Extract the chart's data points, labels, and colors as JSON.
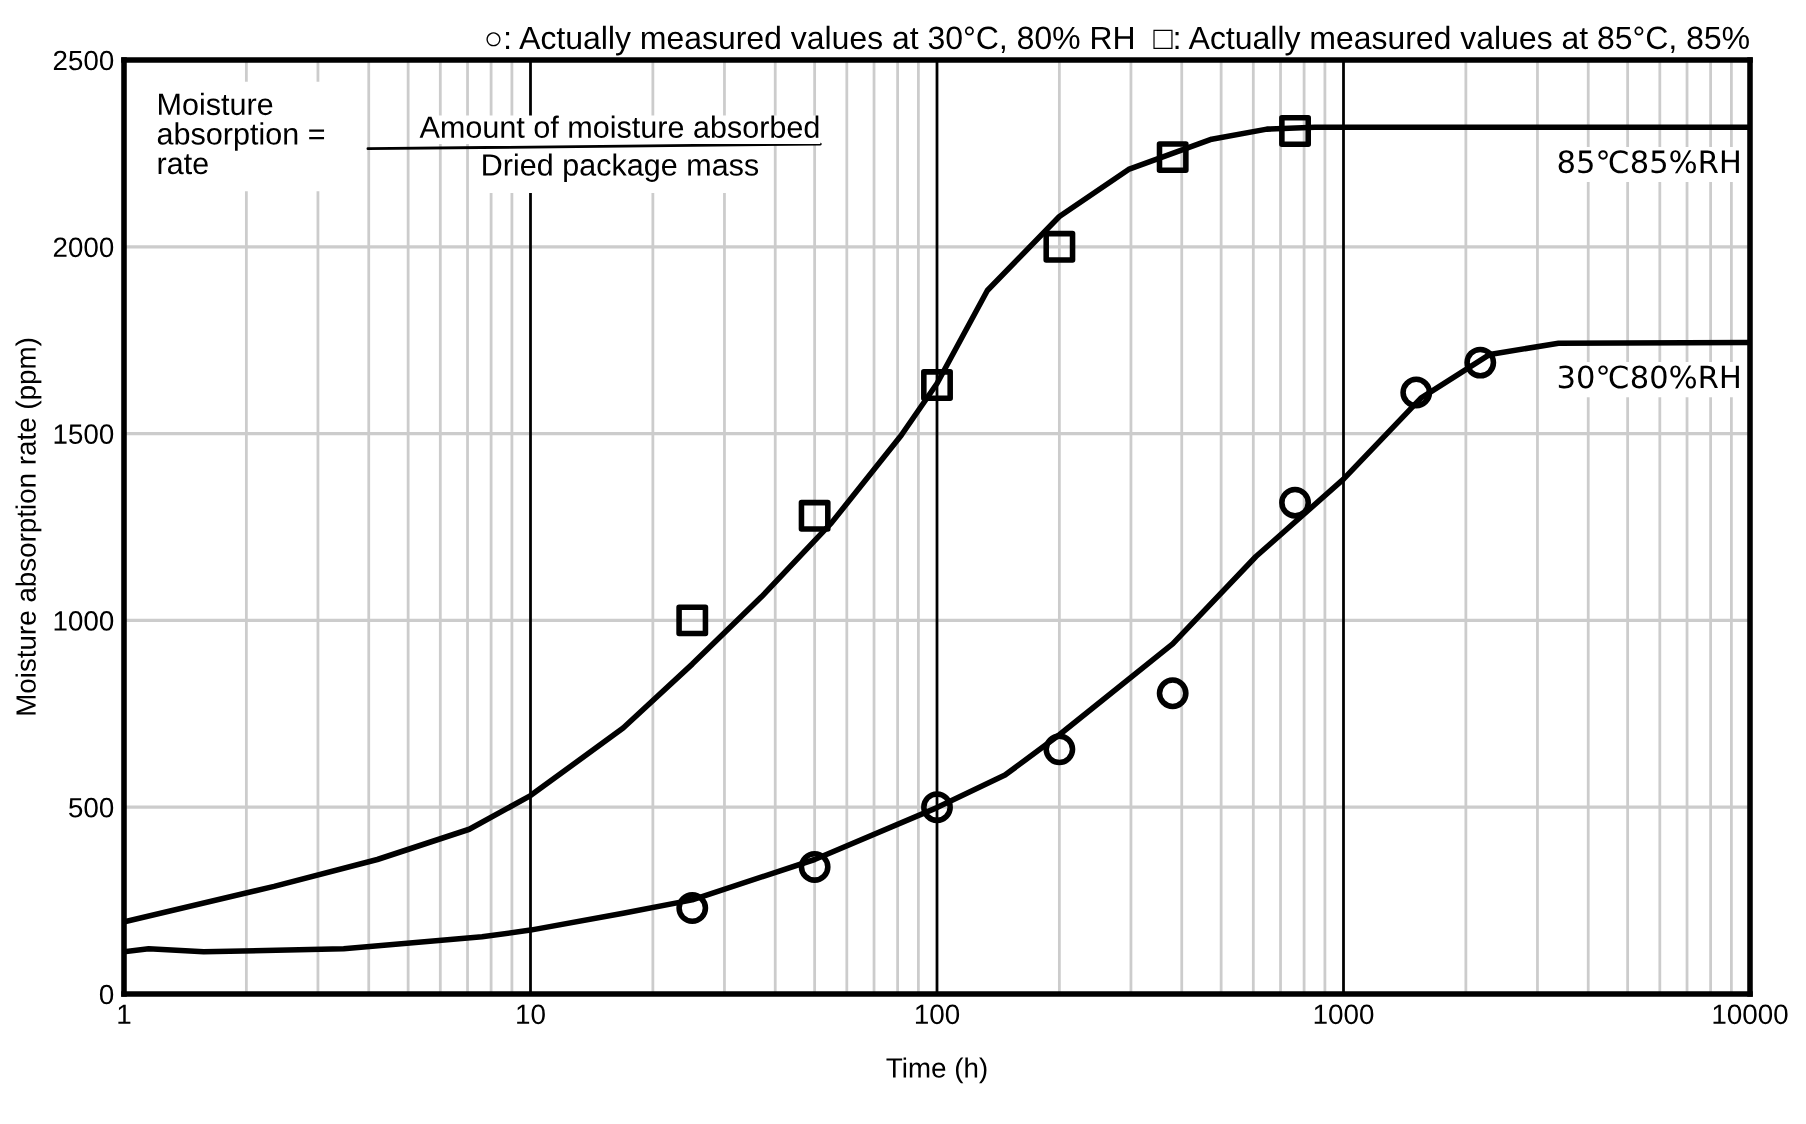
{
  "chart_data": {
    "type": "line",
    "title": "○: Actually measured values at 30°C, 80% RH  □: Actually measured values at 85°C, 85%",
    "xlabel": "Time (h)",
    "ylabel": "Moisture absorption rate (ppm)",
    "log": "x",
    "xlim": [
      1,
      10000
    ],
    "xticks": [
      1,
      10,
      100,
      1000,
      10000
    ],
    "ylim": [
      0,
      2500
    ],
    "yticks": [
      0,
      500,
      1000,
      1500,
      2000,
      2500
    ],
    "grid": true,
    "legend": false,
    "annotations": [
      "Moisture\nabsorption =\nrate",
      "Amount of moisture absorbed",
      "Dried package mass"
    ],
    "series": [
      {
        "name": "85℃85%RH",
        "color": "#000000",
        "marker": "none",
        "x": [
          1,
          2.34,
          4.2,
          7.07,
          10,
          16.9,
          25,
          37,
          55,
          81.6,
          100,
          133,
          200,
          296,
          474,
          648,
          850,
          10000
        ],
        "values": [
          193,
          288,
          360,
          441,
          531,
          712,
          883,
          1063,
          1261,
          1495,
          1634,
          1883,
          2081,
          2207,
          2288,
          2315,
          2320,
          2320
        ]
      },
      {
        "type": "scatter",
        "color": "#000000",
        "marker": "square",
        "x": [
          25,
          50,
          100,
          200,
          380,
          760
        ],
        "values": [
          1000,
          1280,
          1630,
          2000,
          2240,
          2310
        ]
      },
      {
        "name": "30℃80%RH",
        "color": "#000000",
        "marker": "none",
        "x": [
          1,
          1.15,
          1.57,
          3.47,
          7.6,
          10,
          16.9,
          25,
          50,
          100,
          147,
          200,
          380,
          609,
          1000,
          1550,
          2290,
          3380,
          10000
        ],
        "values": [
          113,
          121,
          113,
          121,
          153,
          171,
          216,
          252,
          360,
          499,
          586,
          694,
          937,
          1171,
          1378,
          1595,
          1712,
          1742,
          1744
        ]
      },
      {
        "type": "scatter",
        "color": "#000000",
        "marker": "circle",
        "x": [
          25,
          50,
          100,
          200,
          380,
          760,
          1510,
          2170
        ],
        "values": [
          230,
          340,
          500,
          655,
          805,
          1315,
          1610,
          1690
        ]
      }
    ]
  }
}
